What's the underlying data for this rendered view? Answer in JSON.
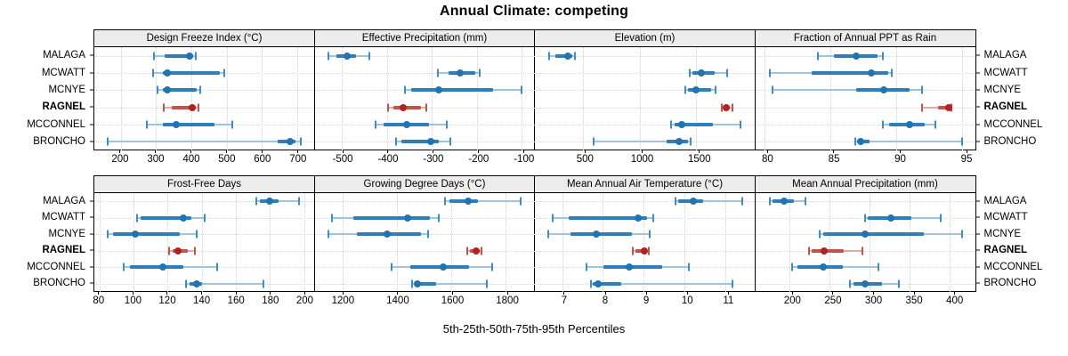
{
  "title": "Annual Climate: competing",
  "caption": "5th-25th-50th-75th-95th Percentiles",
  "stations": [
    "MALAGA",
    "MCWATT",
    "MCNYE",
    "RAGNEL",
    "MCCONNEL",
    "BRONCHO"
  ],
  "highlighted_station": "RAGNEL",
  "colors": {
    "blue": {
      "dot": "#1f74b4",
      "bar": "#2e7ebc",
      "line": "#9cc6e0",
      "cap": "#3d8cc4"
    },
    "red": {
      "dot": "#b22222",
      "bar": "#c2524b",
      "line": "#dfa9a4",
      "cap": "#c2524b"
    },
    "strip_bg": "#ececec",
    "grid": "#d5d5d5",
    "border": "#000000"
  },
  "chart_data": [
    {
      "type": "dotplot",
      "row": 1,
      "title": "Design Freeze Index (°C)",
      "xlim": [
        125,
        748
      ],
      "ticks": [
        200,
        300,
        400,
        500,
        600,
        700
      ],
      "series": [
        {
          "station": "MALAGA",
          "color": "blue",
          "p": [
            295,
            325,
            395,
            406,
            412
          ]
        },
        {
          "station": "MCWATT",
          "color": "blue",
          "p": [
            291,
            320,
            331,
            480,
            494
          ]
        },
        {
          "station": "MCNYE",
          "color": "blue",
          "p": [
            305,
            318,
            332,
            415,
            425
          ]
        },
        {
          "station": "RAGNEL",
          "color": "red",
          "p": [
            322,
            345,
            402,
            412,
            420
          ]
        },
        {
          "station": "MCCONNEL",
          "color": "blue",
          "p": [
            275,
            320,
            357,
            465,
            515
          ]
        },
        {
          "station": "BRONCHO",
          "color": "blue",
          "p": [
            162,
            645,
            680,
            696,
            710
          ]
        }
      ]
    },
    {
      "type": "dotplot",
      "row": 1,
      "title": "Effective Precipitation (mm)",
      "xlim": [
        -561,
        -72
      ],
      "ticks": [
        -500,
        -400,
        -300,
        -200,
        -100
      ],
      "series": [
        {
          "station": "MALAGA",
          "color": "blue",
          "p": [
            -530,
            -512,
            -488,
            -468,
            -440
          ]
        },
        {
          "station": "MCWATT",
          "color": "blue",
          "p": [
            -287,
            -263,
            -238,
            -204,
            -193
          ]
        },
        {
          "station": "MCNYE",
          "color": "blue",
          "p": [
            -360,
            -346,
            -285,
            -165,
            -100
          ]
        },
        {
          "station": "RAGNEL",
          "color": "red",
          "p": [
            -398,
            -386,
            -364,
            -324,
            -313
          ]
        },
        {
          "station": "MCCONNEL",
          "color": "blue",
          "p": [
            -425,
            -408,
            -357,
            -307,
            -267
          ]
        },
        {
          "station": "BRONCHO",
          "color": "blue",
          "p": [
            -379,
            -368,
            -303,
            -284,
            -259
          ]
        }
      ]
    },
    {
      "type": "dotplot",
      "row": 1,
      "title": "Elevation (m)",
      "xlim": [
        77,
        2016
      ],
      "ticks": [
        500,
        1000,
        1500
      ],
      "series": [
        {
          "station": "MALAGA",
          "color": "blue",
          "p": [
            200,
            255,
            365,
            408,
            427
          ]
        },
        {
          "station": "MCWATT",
          "color": "blue",
          "p": [
            1440,
            1468,
            1547,
            1660,
            1772
          ]
        },
        {
          "station": "MCNYE",
          "color": "blue",
          "p": [
            1404,
            1428,
            1495,
            1630,
            1674
          ]
        },
        {
          "station": "RAGNEL",
          "color": "red",
          "p": [
            1726,
            1742,
            1768,
            1790,
            1820
          ]
        },
        {
          "station": "MCCONNEL",
          "color": "blue",
          "p": [
            1275,
            1310,
            1375,
            1650,
            1890
          ]
        },
        {
          "station": "BRONCHO",
          "color": "blue",
          "p": [
            595,
            1240,
            1350,
            1425,
            1450
          ]
        }
      ]
    },
    {
      "type": "dotplot",
      "row": 1,
      "title": "Fraction of Annual PPT as Rain",
      "xlim": [
        79.3,
        96
      ],
      "ticks": [
        80,
        85,
        90,
        95
      ],
      "series": [
        {
          "station": "MALAGA",
          "color": "blue",
          "p": [
            84.1,
            85.3,
            87.0,
            88.6,
            89.0
          ]
        },
        {
          "station": "MCWATT",
          "color": "blue",
          "p": [
            80.4,
            83.6,
            88.1,
            89.4,
            89.7
          ]
        },
        {
          "station": "MCNYE",
          "color": "blue",
          "p": [
            80.6,
            87.0,
            89.1,
            91.0,
            92.0
          ]
        },
        {
          "station": "RAGNEL",
          "color": "red",
          "p": [
            92.0,
            93.2,
            94.0,
            94.1,
            94.2
          ]
        },
        {
          "station": "MCCONNEL",
          "color": "blue",
          "p": [
            89.0,
            89.5,
            91.0,
            92.2,
            93.0
          ]
        },
        {
          "station": "BRONCHO",
          "color": "blue",
          "p": [
            86.9,
            87.1,
            87.3,
            88.0,
            95.0
          ]
        }
      ]
    },
    {
      "type": "dotplot",
      "row": 2,
      "title": "Frost-Free Days",
      "xlim": [
        77,
        206
      ],
      "ticks": [
        80,
        100,
        120,
        140,
        160,
        180,
        200
      ],
      "series": [
        {
          "station": "MALAGA",
          "color": "blue",
          "p": [
            172,
            174,
            180,
            185,
            197
          ]
        },
        {
          "station": "MCWATT",
          "color": "blue",
          "p": [
            102,
            104,
            129,
            134,
            142
          ]
        },
        {
          "station": "MCNYE",
          "color": "blue",
          "p": [
            85,
            88,
            101,
            127,
            137
          ]
        },
        {
          "station": "RAGNEL",
          "color": "red",
          "p": [
            121,
            123,
            126,
            132,
            136
          ]
        },
        {
          "station": "MCCONNEL",
          "color": "blue",
          "p": [
            94,
            98,
            117,
            129,
            149
          ]
        },
        {
          "station": "BRONCHO",
          "color": "blue",
          "p": [
            131,
            133,
            137,
            140,
            176
          ]
        }
      ]
    },
    {
      "type": "dotplot",
      "row": 2,
      "title": "Growing Degree Days (°C)",
      "xlim": [
        1098,
        1907
      ],
      "ticks": [
        1200,
        1400,
        1600,
        1800
      ],
      "series": [
        {
          "station": "MALAGA",
          "color": "blue",
          "p": [
            1578,
            1595,
            1663,
            1700,
            1855
          ]
        },
        {
          "station": "MCWATT",
          "color": "blue",
          "p": [
            1163,
            1240,
            1440,
            1523,
            1555
          ]
        },
        {
          "station": "MCNYE",
          "color": "blue",
          "p": [
            1150,
            1255,
            1365,
            1488,
            1514
          ]
        },
        {
          "station": "RAGNEL",
          "color": "red",
          "p": [
            1660,
            1670,
            1694,
            1705,
            1711
          ]
        },
        {
          "station": "MCCONNEL",
          "color": "blue",
          "p": [
            1380,
            1450,
            1572,
            1665,
            1750
          ]
        },
        {
          "station": "BRONCHO",
          "color": "blue",
          "p": [
            1458,
            1466,
            1477,
            1545,
            1733
          ]
        }
      ]
    },
    {
      "type": "dotplot",
      "row": 2,
      "title": "Mean Annual Air Temperature (°C)",
      "xlim": [
        6.33,
        11.73
      ],
      "ticks": [
        7,
        8,
        9,
        10,
        11
      ],
      "series": [
        {
          "station": "MALAGA",
          "color": "blue",
          "p": [
            9.78,
            9.85,
            10.22,
            10.46,
            11.42
          ]
        },
        {
          "station": "MCWATT",
          "color": "blue",
          "p": [
            6.77,
            7.15,
            8.86,
            9.09,
            9.24
          ]
        },
        {
          "station": "MCNYE",
          "color": "blue",
          "p": [
            6.65,
            7.2,
            7.83,
            8.72,
            9.14
          ]
        },
        {
          "station": "RAGNEL",
          "color": "red",
          "p": [
            8.73,
            8.81,
            9.01,
            9.09,
            9.13
          ]
        },
        {
          "station": "MCCONNEL",
          "color": "blue",
          "p": [
            7.6,
            8.01,
            8.65,
            9.45,
            10.11
          ]
        },
        {
          "station": "BRONCHO",
          "color": "blue",
          "p": [
            7.71,
            7.76,
            7.89,
            8.44,
            11.18
          ]
        }
      ]
    },
    {
      "type": "dotplot",
      "row": 2,
      "title": "Mean Annual Precipitation (mm)",
      "xlim": [
        158,
        431
      ],
      "ticks": [
        200,
        250,
        300,
        350,
        400
      ],
      "series": [
        {
          "station": "MALAGA",
          "color": "blue",
          "p": [
            176,
            180,
            194,
            206,
            220
          ]
        },
        {
          "station": "MCWATT",
          "color": "blue",
          "p": [
            295,
            298,
            327,
            352,
            388
          ]
        },
        {
          "station": "MCNYE",
          "color": "blue",
          "p": [
            238,
            243,
            295,
            368,
            415
          ]
        },
        {
          "station": "RAGNEL",
          "color": "red",
          "p": [
            225,
            228,
            244,
            268,
            291
          ]
        },
        {
          "station": "MCCONNEL",
          "color": "blue",
          "p": [
            204,
            210,
            242,
            267,
            311
          ]
        },
        {
          "station": "BRONCHO",
          "color": "blue",
          "p": [
            276,
            280,
            295,
            316,
            336
          ]
        }
      ]
    }
  ]
}
